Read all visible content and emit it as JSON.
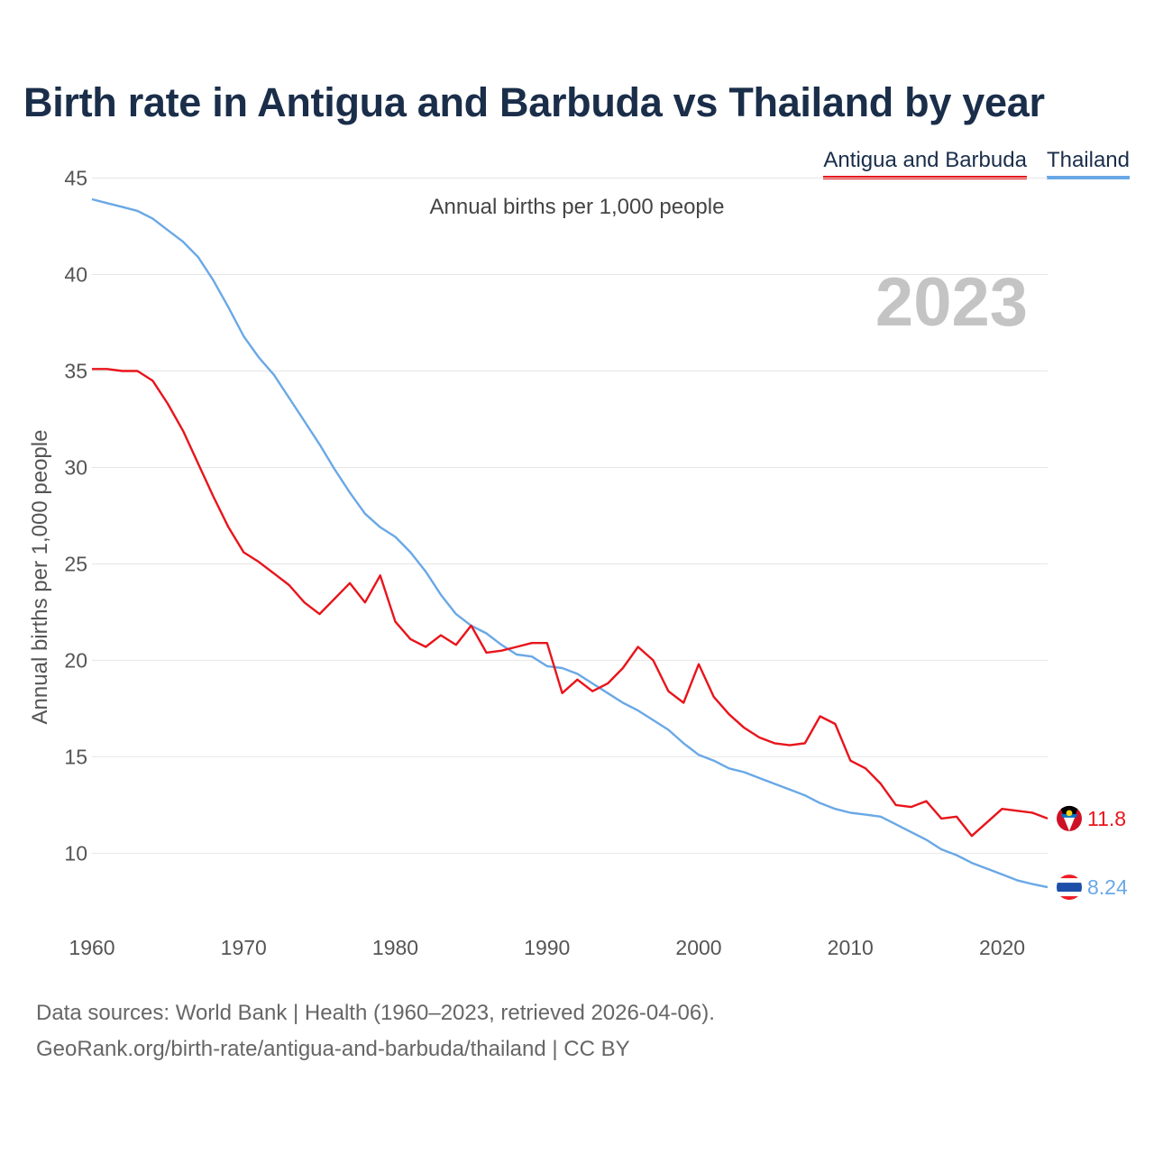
{
  "title": "Birth rate in Antigua and Barbuda vs Thailand by year",
  "legend": [
    {
      "name": "Antigua and Barbuda",
      "color": "#e8141b"
    },
    {
      "name": "Thailand",
      "color": "#69a8e6"
    }
  ],
  "subtitle": "Annual births per 1,000 people",
  "year_watermark": "2023",
  "footer": {
    "line1": "Data sources: World Bank | Health (1960–2023, retrieved 2026-04-06).",
    "line2": "GeoRank.org/birth-rate/antigua-and-barbuda/thailand | CC BY"
  },
  "chart_data": {
    "type": "line",
    "title": "Birth rate in Antigua and Barbuda vs Thailand by year",
    "xlabel": "",
    "ylabel": "Annual births per 1,000 people",
    "xlim": [
      1960,
      2023
    ],
    "ylim": [
      6,
      45
    ],
    "x_ticks": [
      1960,
      1970,
      1980,
      1990,
      2000,
      2010,
      2020
    ],
    "y_ticks": [
      10,
      15,
      20,
      25,
      30,
      35,
      40,
      45
    ],
    "grid": true,
    "legend_position": "top-right",
    "x": [
      1960,
      1961,
      1962,
      1963,
      1964,
      1965,
      1966,
      1967,
      1968,
      1969,
      1970,
      1971,
      1972,
      1973,
      1974,
      1975,
      1976,
      1977,
      1978,
      1979,
      1980,
      1981,
      1982,
      1983,
      1984,
      1985,
      1986,
      1987,
      1988,
      1989,
      1990,
      1991,
      1992,
      1993,
      1994,
      1995,
      1996,
      1997,
      1998,
      1999,
      2000,
      2001,
      2002,
      2003,
      2004,
      2005,
      2006,
      2007,
      2008,
      2009,
      2010,
      2011,
      2012,
      2013,
      2014,
      2015,
      2016,
      2017,
      2018,
      2019,
      2020,
      2021,
      2022,
      2023
    ],
    "series": [
      {
        "name": "Antigua and Barbuda",
        "color": "#e8141b",
        "end_label": "11.8",
        "values": [
          35.1,
          35.1,
          35.0,
          35.0,
          34.5,
          33.3,
          31.9,
          30.2,
          28.5,
          26.9,
          25.6,
          25.1,
          24.5,
          23.9,
          23.0,
          22.4,
          23.2,
          24.0,
          23.0,
          24.4,
          22.0,
          21.1,
          20.7,
          21.3,
          20.8,
          21.8,
          20.4,
          20.5,
          20.7,
          20.9,
          20.9,
          18.3,
          19.0,
          18.4,
          18.8,
          19.6,
          20.7,
          20.0,
          18.4,
          17.8,
          19.8,
          18.1,
          17.2,
          16.5,
          16.0,
          15.7,
          15.6,
          15.7,
          17.1,
          16.7,
          14.8,
          14.4,
          13.6,
          12.5,
          12.4,
          12.7,
          11.8,
          11.9,
          10.9,
          11.6,
          12.3,
          12.2,
          12.1,
          11.8
        ]
      },
      {
        "name": "Thailand",
        "color": "#69a8e6",
        "end_label": "8.24",
        "values": [
          43.9,
          43.7,
          43.5,
          43.3,
          42.9,
          42.3,
          41.7,
          40.9,
          39.7,
          38.3,
          36.8,
          35.7,
          34.8,
          33.6,
          32.4,
          31.2,
          29.9,
          28.7,
          27.6,
          26.9,
          26.4,
          25.6,
          24.6,
          23.4,
          22.4,
          21.8,
          21.4,
          20.8,
          20.3,
          20.2,
          19.7,
          19.6,
          19.3,
          18.8,
          18.3,
          17.8,
          17.4,
          16.9,
          16.4,
          15.7,
          15.1,
          14.8,
          14.4,
          14.2,
          13.9,
          13.6,
          13.3,
          13.0,
          12.6,
          12.3,
          12.1,
          12.0,
          11.9,
          11.5,
          11.1,
          10.7,
          10.2,
          9.9,
          9.5,
          9.2,
          8.9,
          8.6,
          8.4,
          8.24
        ]
      }
    ]
  }
}
